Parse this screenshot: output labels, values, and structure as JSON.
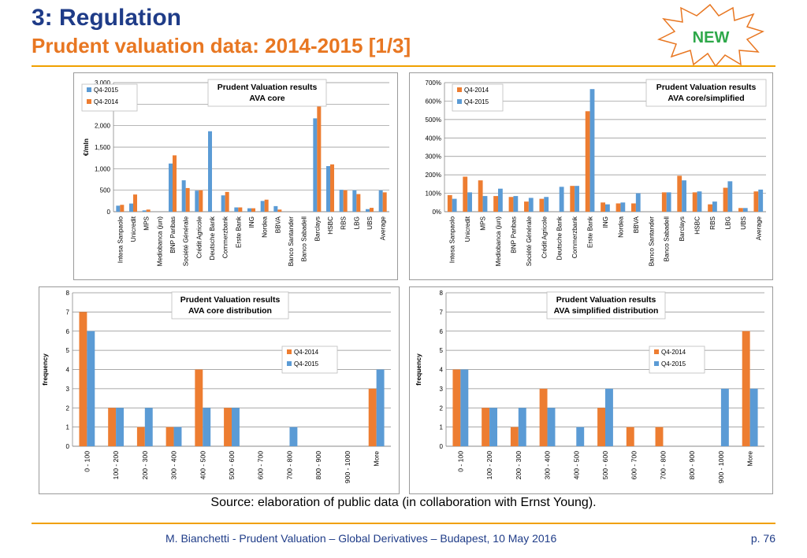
{
  "header": {
    "title": "3: Regulation",
    "subtitle": "Prudent valuation data: 2014-2015 [1/3]",
    "badge": "NEW"
  },
  "source_note": "Source: elaboration of public data (in collaboration with Ernst Young).",
  "footer": {
    "text": "M. Bianchetti - Prudent Valuation – Global Derivatives – Budapest, 10 May 2016",
    "page": "p. 76"
  },
  "colors": {
    "blue": "#5b9bd5",
    "orange": "#ed7d31",
    "title": "#1f3c88",
    "accent": "#e87722"
  },
  "chart_data": [
    {
      "id": "ava-core",
      "type": "bar",
      "title": "Prudent Valuation results\nAVA core",
      "ylabel": "€/mln",
      "ylim": [
        0,
        3000
      ],
      "yticks": [
        0,
        500,
        1000,
        1500,
        2000,
        2500,
        3000
      ],
      "ytick_labels": [
        "0",
        "500",
        "1,000",
        "1,500",
        "2,000",
        "2,500",
        "3,000"
      ],
      "legend": "top-left",
      "categories": [
        "Intesa Sanpaolo",
        "Unicredit",
        "MPS",
        "Mediobanca (jun)",
        "BNP Paribas",
        "Société Générale",
        "Crédit Agricole",
        "Deutsche Bank",
        "Commerzbank",
        "Erste Bank",
        "ING",
        "Nordea",
        "BBVA",
        "Banco Santander",
        "Banco Sabadell",
        "Barclays",
        "HSBC",
        "RBS",
        "LBG",
        "UBS",
        "Average"
      ],
      "series": [
        {
          "name": "Q4-2015",
          "color": "#5b9bd5",
          "values": [
            140,
            190,
            30,
            0,
            1120,
            730,
            490,
            1870,
            380,
            100,
            80,
            250,
            130,
            0,
            0,
            2170,
            1060,
            510,
            500,
            60,
            500
          ]
        },
        {
          "name": "Q4-2014",
          "color": "#ed7d31",
          "values": [
            160,
            400,
            50,
            0,
            1310,
            550,
            500,
            0,
            460,
            100,
            80,
            280,
            50,
            0,
            0,
            2830,
            1100,
            500,
            410,
            90,
            450
          ]
        }
      ]
    },
    {
      "id": "ava-core-simplified",
      "type": "bar",
      "title": "Prudent Valuation results\nAVA core/simplified",
      "ylim": [
        0,
        700
      ],
      "yticks": [
        0,
        100,
        200,
        300,
        400,
        500,
        600,
        700
      ],
      "ytick_labels": [
        "0%",
        "100%",
        "200%",
        "300%",
        "400%",
        "500%",
        "600%",
        "700%"
      ],
      "legend": "top-left",
      "categories": [
        "Intesa Sanpaolo",
        "Unicredit",
        "MPS",
        "Mediobanca (jun)",
        "BNP Paribas",
        "Société Générale",
        "Crédit Agricole",
        "Deutsche Bank",
        "Commerzbank",
        "Erste Bank",
        "ING",
        "Nordea",
        "BBVA",
        "Banco Santander",
        "Banco Sabadell",
        "Barclays",
        "HSBC",
        "RBS",
        "LBG",
        "UBS",
        "Average"
      ],
      "series": [
        {
          "name": "Q4-2014",
          "color": "#ed7d31",
          "values": [
            90,
            190,
            170,
            85,
            80,
            55,
            70,
            0,
            140,
            545,
            50,
            45,
            45,
            0,
            105,
            195,
            105,
            40,
            130,
            20,
            110
          ]
        },
        {
          "name": "Q4-2015",
          "color": "#5b9bd5",
          "values": [
            70,
            105,
            85,
            125,
            85,
            75,
            80,
            135,
            140,
            665,
            40,
            50,
            100,
            0,
            105,
            170,
            110,
            55,
            165,
            20,
            120
          ]
        }
      ]
    },
    {
      "id": "ava-core-distribution",
      "type": "bar",
      "title": "Prudent Valuation results\nAVA core distribution",
      "ylabel": "frequency",
      "ylim": [
        0,
        8
      ],
      "yticks": [
        0,
        1,
        2,
        3,
        4,
        5,
        6,
        7,
        8
      ],
      "ytick_labels": [
        "0",
        "1",
        "2",
        "3",
        "4",
        "5",
        "6",
        "7",
        "8"
      ],
      "legend": "right",
      "categories": [
        "0 - 100",
        "100 - 200",
        "200 - 300",
        "300 - 400",
        "400 - 500",
        "500 - 600",
        "600 - 700",
        "700 - 800",
        "800 - 900",
        "900 - 1000",
        "More"
      ],
      "series": [
        {
          "name": "Q4-2014",
          "color": "#ed7d31",
          "values": [
            7,
            2,
            1,
            1,
            4,
            2,
            0,
            0,
            0,
            0,
            3
          ]
        },
        {
          "name": "Q4-2015",
          "color": "#5b9bd5",
          "values": [
            6,
            2,
            2,
            1,
            2,
            2,
            0,
            1,
            0,
            0,
            4
          ]
        }
      ]
    },
    {
      "id": "ava-simplified-distribution",
      "type": "bar",
      "title": "Prudent Valuation results\nAVA simplified distribution",
      "ylabel": "frequency",
      "ylim": [
        0,
        8
      ],
      "yticks": [
        0,
        1,
        2,
        3,
        4,
        5,
        6,
        7,
        8
      ],
      "ytick_labels": [
        "0",
        "1",
        "2",
        "3",
        "4",
        "5",
        "6",
        "7",
        "8"
      ],
      "legend": "right",
      "categories": [
        "0 - 100",
        "100 - 200",
        "200 - 300",
        "300 - 400",
        "400 - 500",
        "500 - 600",
        "600 - 700",
        "700 - 800",
        "800 - 900",
        "900 - 1000",
        "More"
      ],
      "series": [
        {
          "name": "Q4-2014",
          "color": "#ed7d31",
          "values": [
            4,
            2,
            1,
            3,
            0,
            2,
            1,
            1,
            0,
            0,
            6
          ]
        },
        {
          "name": "Q4-2015",
          "color": "#5b9bd5",
          "values": [
            4,
            2,
            2,
            2,
            1,
            3,
            0,
            0,
            0,
            3,
            3
          ]
        }
      ]
    }
  ]
}
